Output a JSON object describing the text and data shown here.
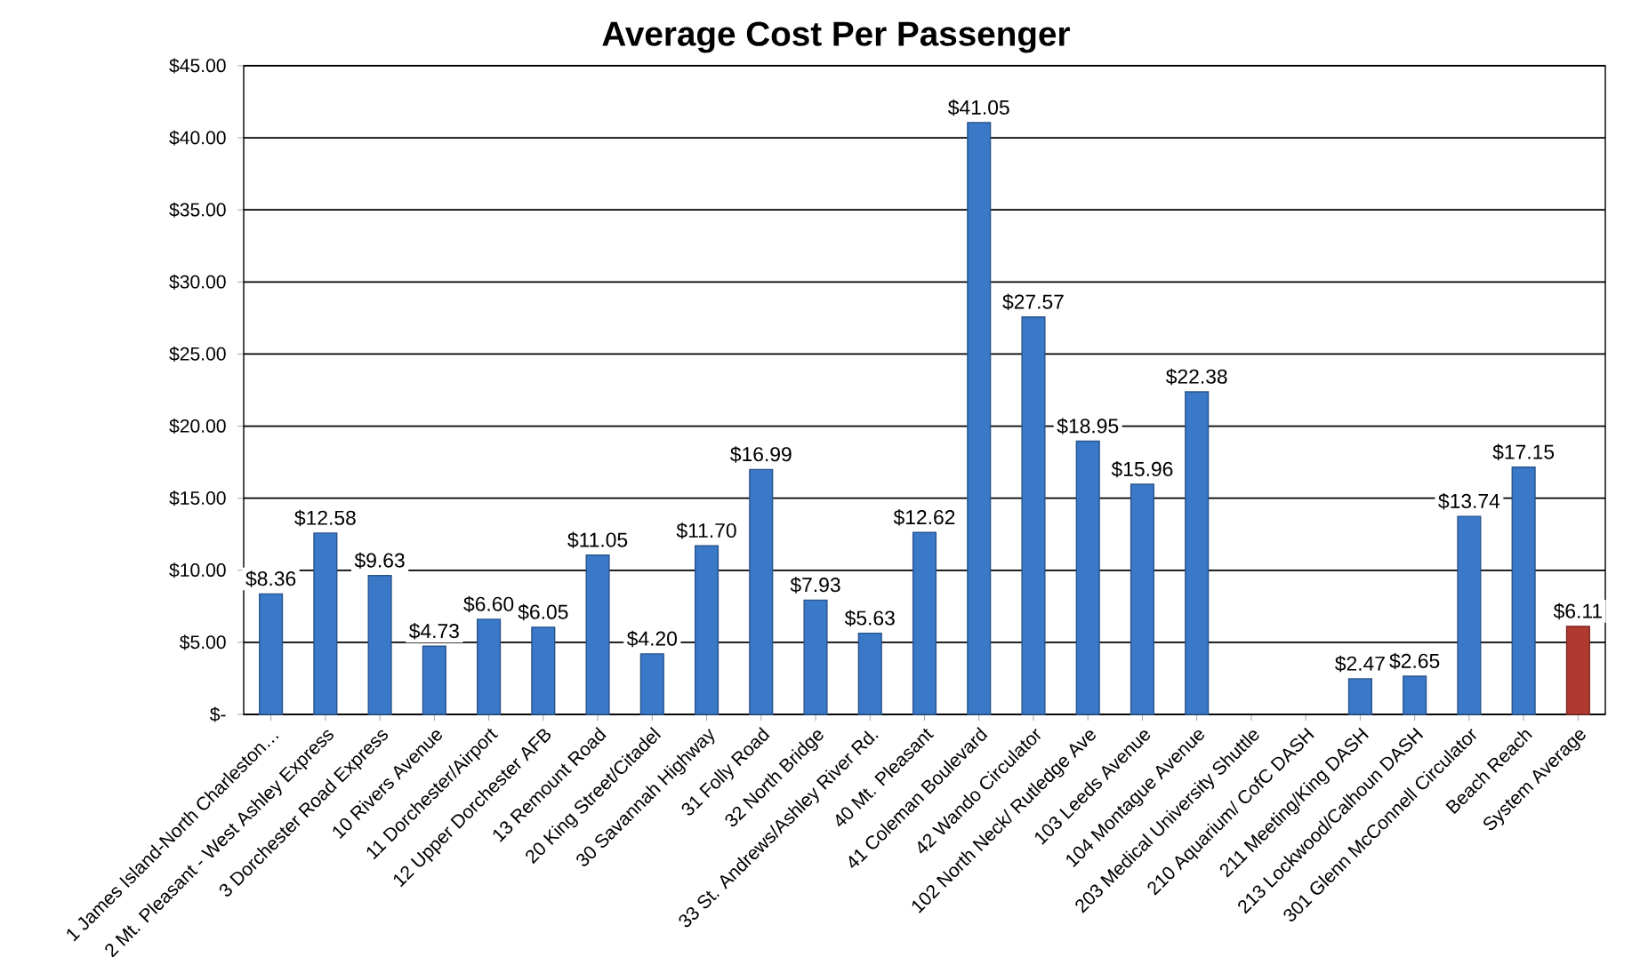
{
  "chart_data": {
    "type": "bar",
    "title": "Average Cost Per Passenger",
    "categories": [
      "1 James Island-North Charleston…",
      "2 Mt. Pleasant - West Ashley Express",
      "3 Dorchester Road Express",
      "10 Rivers Avenue",
      "11 Dorchester/Airport",
      "12 Upper Dorchester AFB",
      "13 Remount Road",
      "20 King Street/Citadel",
      "30 Savannah Highway",
      "31 Folly Road",
      "32 North Bridge",
      "33 St. Andrews/Ashley River Rd.",
      "40 Mt. Pleasant",
      "41 Coleman Boulevard",
      "42 Wando Circulator",
      "102 North Neck/ Rutledge Ave",
      "103 Leeds Avenue",
      "104 Montague Avenue",
      "203 Medical University Shuttle",
      "210 Aquarium/ CofC DASH",
      "211 Meeting/King DASH",
      "213 Lockwood/Calhoun DASH",
      "301 Glenn McConnell Circulator",
      "Beach Reach",
      "System Average"
    ],
    "values": [
      8.36,
      12.58,
      9.63,
      4.73,
      6.6,
      6.05,
      11.05,
      4.2,
      11.7,
      16.99,
      7.93,
      5.63,
      12.62,
      41.05,
      27.57,
      18.95,
      15.96,
      22.38,
      null,
      null,
      2.47,
      2.65,
      13.74,
      17.15,
      6.11
    ],
    "value_labels": [
      "$8.36",
      "$12.58",
      "$9.63",
      "$4.73",
      "$6.60",
      "$6.05",
      "$11.05",
      "$4.20",
      "$11.70",
      "$16.99",
      "$7.93",
      "$5.63",
      "$12.62",
      "$41.05",
      "$27.57",
      "$18.95",
      "$15.96",
      "$22.38",
      null,
      null,
      "$2.47",
      "$2.65",
      "$13.74",
      "$17.15",
      "$6.11"
    ],
    "colors": [
      "#3a78c8",
      "#3a78c8",
      "#3a78c8",
      "#3a78c8",
      "#3a78c8",
      "#3a78c8",
      "#3a78c8",
      "#3a78c8",
      "#3a78c8",
      "#3a78c8",
      "#3a78c8",
      "#3a78c8",
      "#3a78c8",
      "#3a78c8",
      "#3a78c8",
      "#3a78c8",
      "#3a78c8",
      "#3a78c8",
      "#3a78c8",
      "#3a78c8",
      "#3a78c8",
      "#3a78c8",
      "#3a78c8",
      "#3a78c8",
      "#b03a30"
    ],
    "ylim": [
      0,
      45
    ],
    "yticks": [
      {
        "value": 0,
        "label": "$-"
      },
      {
        "value": 5,
        "label": "$5.00"
      },
      {
        "value": 10,
        "label": "$10.00"
      },
      {
        "value": 15,
        "label": "$15.00"
      },
      {
        "value": 20,
        "label": "$20.00"
      },
      {
        "value": 25,
        "label": "$25.00"
      },
      {
        "value": 30,
        "label": "$30.00"
      },
      {
        "value": 35,
        "label": "$35.00"
      },
      {
        "value": 40,
        "label": "$40.00"
      },
      {
        "value": 45,
        "label": "$45.00"
      }
    ],
    "grid": "y"
  }
}
